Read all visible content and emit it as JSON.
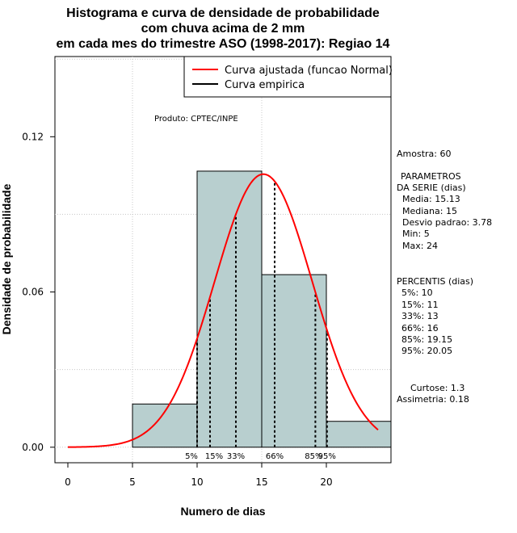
{
  "chart_data": {
    "type": "bar",
    "title_lines": [
      "Histograma e curva de densidade de probabilidade",
      "com chuva acima de 2 mm",
      "em cada mes do trimestre ASO (1998-2017): Regiao 14"
    ],
    "xlabel": "Numero de dias",
    "ylabel": "Densidade de probabilidade",
    "xlim": [
      -1,
      25
    ],
    "ylim": [
      -0.006,
      0.151
    ],
    "x_ticks": [
      0,
      5,
      10,
      15,
      20
    ],
    "y_ticks": [
      0.0,
      0.06,
      0.12
    ],
    "y_tick_labels": [
      "0.00",
      "0.06",
      "0.12"
    ],
    "grid": true,
    "histogram": {
      "bins": [
        [
          5,
          10
        ],
        [
          10,
          15
        ],
        [
          15,
          20
        ],
        [
          20,
          25
        ]
      ],
      "values": [
        0.0167,
        0.1067,
        0.0667,
        0.01
      ],
      "color": "#b8cfcf"
    },
    "normal_fit": {
      "mean": 15.13,
      "sd": 3.78,
      "x_range": [
        0,
        24
      ],
      "color": "#ff0000"
    },
    "percentiles": [
      {
        "label": "5%",
        "x": 10
      },
      {
        "label": "15%",
        "x": 11
      },
      {
        "label": "33%",
        "x": 13
      },
      {
        "label": "66%",
        "x": 16
      },
      {
        "label": "85%",
        "x": 19.15
      },
      {
        "label": "95%",
        "x": 20.05
      }
    ],
    "legend": {
      "position": "top-right",
      "entries": [
        {
          "label": "Curva ajustada (funcao Normal)",
          "color": "#ff0000"
        },
        {
          "label": "Curva empirica",
          "color": "#000000"
        }
      ]
    },
    "product_note": "Produto: CPTEC/INPE",
    "side_panel": {
      "sample": "Amostra: 60",
      "params_title": "PARAMETROS",
      "params_subtitle": "DA SERIE (dias)",
      "params": [
        "Media: 15.13",
        "Mediana: 15",
        "Desvio padrao: 3.78",
        "Min: 5",
        "Max: 24"
      ],
      "percentis_title": "PERCENTIS (dias)",
      "percentis": [
        "5%: 10",
        "15%: 11",
        "33%: 13",
        "66%: 16",
        "85%: 19.15",
        "95%: 20.05"
      ],
      "kurtosis": "Curtose: 1.3",
      "skewness": "Assimetria: 0.18"
    }
  }
}
